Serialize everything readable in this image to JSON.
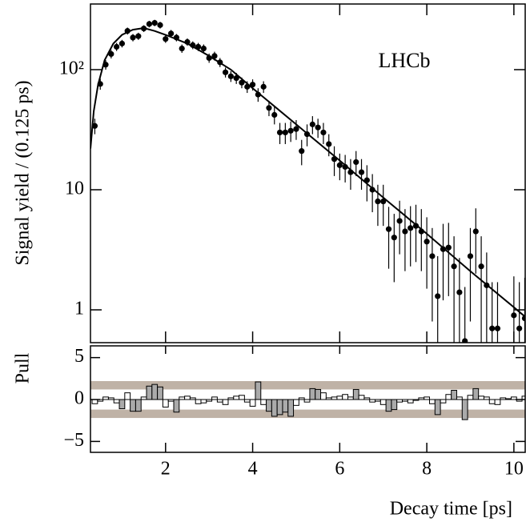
{
  "chart_data": [
    {
      "type": "scatter",
      "annotation": "LHCb",
      "y_label": "Signal yield / (0.125 ps)",
      "log_y": true,
      "color": "#000000",
      "fit_color": "#000000",
      "xlim": [
        0.275,
        10.26
      ],
      "xticks": [
        2,
        4,
        6,
        8,
        10
      ],
      "ylim": [
        0.533,
        352
      ],
      "yticks": [
        {
          "value": 100,
          "label": "10²"
        },
        10,
        1
      ],
      "x": [
        0.375,
        0.5,
        0.625,
        0.75,
        0.875,
        1.0,
        1.125,
        1.25,
        1.375,
        1.5,
        1.625,
        1.75,
        1.875,
        2.0,
        2.125,
        2.25,
        2.375,
        2.5,
        2.625,
        2.75,
        2.875,
        3.0,
        3.125,
        3.25,
        3.375,
        3.5,
        3.625,
        3.75,
        3.875,
        4.0,
        4.125,
        4.25,
        4.375,
        4.5,
        4.625,
        4.75,
        4.875,
        5.0,
        5.125,
        5.25,
        5.375,
        5.5,
        5.625,
        5.75,
        5.875,
        6.0,
        6.125,
        6.25,
        6.375,
        6.5,
        6.625,
        6.75,
        6.875,
        7.0,
        7.125,
        7.25,
        7.375,
        7.5,
        7.625,
        7.75,
        7.875,
        8.0,
        8.125,
        8.25,
        8.375,
        8.5,
        8.625,
        8.75,
        8.875,
        9.0,
        9.125,
        9.25,
        9.375,
        9.5,
        9.625,
        9.75,
        9.875,
        10.0,
        10.125,
        10.25
      ],
      "values": [
        34,
        76,
        110,
        135,
        155,
        165,
        210,
        185,
        190,
        220,
        240,
        245,
        235,
        180,
        200,
        185,
        150,
        170,
        160,
        155,
        150,
        125,
        130,
        115,
        95,
        88,
        85,
        78,
        72,
        75,
        62,
        72,
        48,
        42,
        30,
        30,
        31,
        32,
        21,
        29,
        35,
        33,
        30,
        24,
        18,
        16,
        15.5,
        14,
        17,
        14,
        12,
        10,
        8,
        8,
        4.7,
        4,
        5.5,
        4.5,
        4.8,
        5,
        4.5,
        3.7,
        2.8,
        1.3,
        3.2,
        3.3,
        2.3,
        1.4,
        0.55,
        2.8,
        4.5,
        2.3,
        1.6,
        0.7,
        0.7,
        null,
        null,
        0.9,
        0.7,
        0.85
      ],
      "errors": [
        5,
        8,
        10,
        11,
        12,
        12,
        14,
        13,
        13,
        14,
        15,
        15,
        15,
        13,
        14,
        13,
        12,
        12,
        12,
        12,
        12,
        11,
        11,
        10,
        9,
        9,
        9,
        8,
        8,
        8,
        8,
        8,
        7,
        7,
        6,
        6,
        6,
        6,
        5,
        6,
        6,
        6,
        6,
        5,
        5,
        4,
        4,
        4,
        4,
        4,
        4,
        3.5,
        3,
        3,
        2.5,
        2.3,
        2.6,
        2.4,
        2.5,
        2.5,
        2.4,
        2.2,
        2,
        1.5,
        2,
        2,
        1.8,
        1.3,
        1,
        2,
        2.5,
        1.8,
        1.4,
        1,
        1,
        null,
        null,
        1,
        1,
        1
      ],
      "fit": {
        "x": [
          0.275,
          0.35,
          0.45,
          0.6,
          0.8,
          1.0,
          1.25,
          1.5,
          1.75,
          2.0,
          2.5,
          3.0,
          3.5,
          4.0,
          4.5,
          5.0,
          6.0,
          7.0,
          8.0,
          9.0,
          10.0,
          10.25
        ],
        "values": [
          22,
          45,
          75,
          120,
          165,
          195,
          215,
          222,
          210,
          195,
          165,
          130,
          100,
          70,
          49.5,
          35,
          17.5,
          8.6,
          4.3,
          2.1,
          1.05,
          0.88
        ]
      }
    },
    {
      "type": "pull",
      "y_label": "Pull",
      "x_label": "Decay time [ps]",
      "color": "#aaaaaa",
      "band_color": "#bfb2a6",
      "highlight_threshold": 1,
      "xlim": [
        0.275,
        10.26
      ],
      "xticks": [
        2,
        4,
        6,
        8,
        10
      ],
      "ylim": [
        -6.3,
        6.4
      ],
      "yticks": [
        5,
        0,
        {
          "value": -5,
          "label": "−5"
        }
      ],
      "bands": [
        [
          1.2,
          2.2
        ],
        [
          -2.2,
          -1.2
        ]
      ],
      "x": [
        0.375,
        0.5,
        0.625,
        0.75,
        0.875,
        1.0,
        1.125,
        1.25,
        1.375,
        1.5,
        1.625,
        1.75,
        1.875,
        2.0,
        2.125,
        2.25,
        2.375,
        2.5,
        2.625,
        2.75,
        2.875,
        3.0,
        3.125,
        3.25,
        3.375,
        3.5,
        3.625,
        3.75,
        3.875,
        4.0,
        4.125,
        4.25,
        4.375,
        4.5,
        4.625,
        4.75,
        4.875,
        5.0,
        5.125,
        5.25,
        5.375,
        5.5,
        5.625,
        5.75,
        5.875,
        6.0,
        6.125,
        6.25,
        6.375,
        6.5,
        6.625,
        6.75,
        6.875,
        7.0,
        7.125,
        7.25,
        7.375,
        7.5,
        7.625,
        7.75,
        7.875,
        8.0,
        8.125,
        8.25,
        8.375,
        8.5,
        8.625,
        8.75,
        8.875,
        9.0,
        9.125,
        9.25,
        9.375,
        9.5,
        9.625,
        9.75,
        9.875,
        10.0,
        10.125,
        10.25
      ],
      "values": [
        -0.5,
        -0.2,
        0.3,
        0.2,
        -0.4,
        -1.1,
        0.8,
        -1.4,
        -1.4,
        0.3,
        1.6,
        1.8,
        1.5,
        -0.9,
        -0.2,
        -1.5,
        0.3,
        0.4,
        0.2,
        -0.5,
        -0.4,
        -0.2,
        0.3,
        -0.3,
        -0.6,
        0.2,
        0.4,
        0.5,
        -0.3,
        -0.8,
        2.1,
        -0.6,
        -1.4,
        -2.0,
        -1.8,
        -1.5,
        -2.0,
        -0.7,
        0.2,
        -0.3,
        1.3,
        1.2,
        0.8,
        0.2,
        0.3,
        0.4,
        0.6,
        0.3,
        1.2,
        0.5,
        0.2,
        -0.3,
        -0.2,
        -0.6,
        -1.4,
        -1.2,
        -0.3,
        -0.2,
        -0.4,
        -0.1,
        0.2,
        0.3,
        -0.5,
        -1.8,
        -0.4,
        0.6,
        1.1,
        0.3,
        -2.4,
        0.5,
        1.3,
        0.4,
        0.3,
        -0.5,
        -0.6,
        0.2,
        0.1,
        0.3,
        -0.2,
        0.4
      ]
    }
  ]
}
